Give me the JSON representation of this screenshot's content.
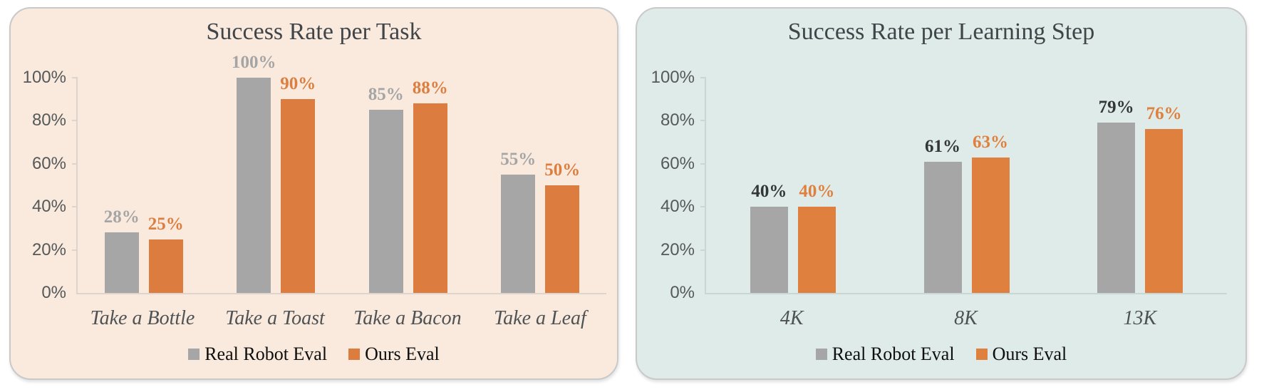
{
  "chart_data": [
    {
      "type": "bar",
      "title": "Success Rate per Task",
      "categories": [
        "Take a Bottle",
        "Take a Toast",
        "Take a Bacon",
        "Take a Leaf"
      ],
      "series": [
        {
          "name": "Real Robot Eval",
          "values": [
            28,
            100,
            85,
            55
          ],
          "bar_color": "#a6a6a6",
          "label_color": "#a5a5a5"
        },
        {
          "name": "Ours Eval",
          "values": [
            25,
            90,
            88,
            50
          ],
          "bar_color": "#dc7c3f",
          "label_color": "#dc7e3f"
        }
      ],
      "data_labels": [
        "28%",
        "100%",
        "85%",
        "55%",
        "25%",
        "90%",
        "88%",
        "50%"
      ],
      "value_suffix": "%",
      "xlabel": "",
      "ylabel": "",
      "ylim": [
        0,
        100
      ],
      "y_tick_labels": [
        "0%",
        "20%",
        "40%",
        "60%",
        "80%",
        "100%"
      ],
      "grid": false,
      "legend_position": "bottom",
      "panel_bg": "#faeade",
      "axis_color": "#ddd5cd"
    },
    {
      "type": "bar",
      "title": "Success Rate per Learning Step",
      "categories": [
        "4K",
        "8K",
        "13K"
      ],
      "series": [
        {
          "name": "Real Robot Eval",
          "values": [
            40,
            61,
            79
          ],
          "bar_color": "#a6a6a6",
          "label_color": "#333639"
        },
        {
          "name": "Ours Eval",
          "values": [
            40,
            63,
            76
          ],
          "bar_color": "#df803e",
          "label_color": "#df803e"
        }
      ],
      "data_labels": [
        "40%",
        "61%",
        "79%",
        "40%",
        "63%",
        "76%"
      ],
      "value_suffix": "%",
      "xlabel": "",
      "ylabel": "",
      "ylim": [
        0,
        100
      ],
      "y_tick_labels": [
        "0%",
        "20%",
        "40%",
        "60%",
        "80%",
        "100%"
      ],
      "grid": false,
      "legend_position": "bottom",
      "panel_bg": "#dfebe9",
      "axis_color": "#c9d6d3"
    }
  ]
}
